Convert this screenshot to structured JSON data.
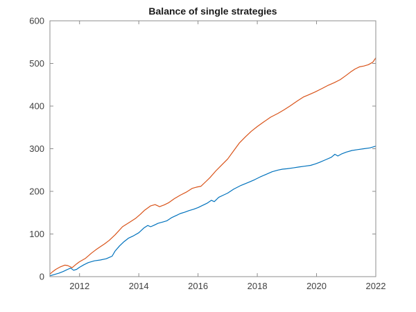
{
  "window": {
    "background": "#ffffff"
  },
  "chart_data": {
    "type": "line",
    "title": "Balance of single strategies",
    "xlabel": "",
    "ylabel": "",
    "xlim": [
      2011,
      2022
    ],
    "ylim": [
      0,
      600
    ],
    "x_ticks": [
      2012,
      2014,
      2016,
      2018,
      2020,
      2022
    ],
    "y_ticks": [
      0,
      100,
      200,
      300,
      400,
      500,
      600
    ],
    "grid": false,
    "legend": "none",
    "box": true,
    "tick_direction": "in",
    "axis_color": "#8c8c8c",
    "tick_label_color": "#404040",
    "title_color": "#1a1a1a",
    "series": [
      {
        "name": "strategy-1-balance",
        "color": "#0072BD",
        "points": [
          [
            2011.0,
            2
          ],
          [
            2011.15,
            5
          ],
          [
            2011.3,
            8
          ],
          [
            2011.45,
            12
          ],
          [
            2011.6,
            17
          ],
          [
            2011.7,
            20
          ],
          [
            2011.8,
            15
          ],
          [
            2011.9,
            17
          ],
          [
            2012.0,
            22
          ],
          [
            2012.15,
            28
          ],
          [
            2012.3,
            33
          ],
          [
            2012.5,
            37
          ],
          [
            2012.7,
            39
          ],
          [
            2012.9,
            42
          ],
          [
            2013.0,
            45
          ],
          [
            2013.1,
            48
          ],
          [
            2013.2,
            60
          ],
          [
            2013.35,
            72
          ],
          [
            2013.5,
            82
          ],
          [
            2013.65,
            90
          ],
          [
            2013.8,
            95
          ],
          [
            2014.0,
            103
          ],
          [
            2014.17,
            114
          ],
          [
            2014.3,
            120
          ],
          [
            2014.4,
            117
          ],
          [
            2014.5,
            120
          ],
          [
            2014.65,
            125
          ],
          [
            2014.8,
            128
          ],
          [
            2014.95,
            131
          ],
          [
            2015.1,
            138
          ],
          [
            2015.25,
            143
          ],
          [
            2015.4,
            148
          ],
          [
            2015.55,
            151
          ],
          [
            2015.7,
            155
          ],
          [
            2015.85,
            158
          ],
          [
            2016.0,
            162
          ],
          [
            2016.15,
            167
          ],
          [
            2016.3,
            172
          ],
          [
            2016.45,
            179
          ],
          [
            2016.55,
            176
          ],
          [
            2016.7,
            186
          ],
          [
            2016.85,
            191
          ],
          [
            2017.0,
            196
          ],
          [
            2017.2,
            205
          ],
          [
            2017.45,
            214
          ],
          [
            2017.7,
            221
          ],
          [
            2017.9,
            227
          ],
          [
            2018.1,
            234
          ],
          [
            2018.3,
            240
          ],
          [
            2018.5,
            246
          ],
          [
            2018.7,
            250
          ],
          [
            2018.85,
            252
          ],
          [
            2019.0,
            253
          ],
          [
            2019.2,
            255
          ],
          [
            2019.4,
            257
          ],
          [
            2019.6,
            259
          ],
          [
            2019.8,
            261
          ],
          [
            2019.95,
            264
          ],
          [
            2020.1,
            268
          ],
          [
            2020.3,
            274
          ],
          [
            2020.5,
            280
          ],
          [
            2020.62,
            287
          ],
          [
            2020.72,
            283
          ],
          [
            2020.85,
            288
          ],
          [
            2021.0,
            292
          ],
          [
            2021.2,
            296
          ],
          [
            2021.4,
            298
          ],
          [
            2021.6,
            300
          ],
          [
            2021.8,
            302
          ],
          [
            2022.0,
            306
          ]
        ]
      },
      {
        "name": "strategy-2-balance",
        "color": "#D95319",
        "points": [
          [
            2011.0,
            6
          ],
          [
            2011.1,
            12
          ],
          [
            2011.2,
            17
          ],
          [
            2011.35,
            23
          ],
          [
            2011.5,
            27
          ],
          [
            2011.6,
            26
          ],
          [
            2011.75,
            21
          ],
          [
            2011.9,
            30
          ],
          [
            2012.0,
            35
          ],
          [
            2012.2,
            43
          ],
          [
            2012.4,
            55
          ],
          [
            2012.55,
            63
          ],
          [
            2012.7,
            70
          ],
          [
            2012.85,
            77
          ],
          [
            2013.0,
            85
          ],
          [
            2013.2,
            98
          ],
          [
            2013.45,
            117
          ],
          [
            2013.7,
            128
          ],
          [
            2013.9,
            137
          ],
          [
            2014.05,
            146
          ],
          [
            2014.2,
            156
          ],
          [
            2014.4,
            166
          ],
          [
            2014.55,
            169
          ],
          [
            2014.7,
            164
          ],
          [
            2014.85,
            168
          ],
          [
            2015.0,
            173
          ],
          [
            2015.2,
            183
          ],
          [
            2015.4,
            191
          ],
          [
            2015.6,
            198
          ],
          [
            2015.8,
            207
          ],
          [
            2015.95,
            210
          ],
          [
            2016.1,
            212
          ],
          [
            2016.25,
            222
          ],
          [
            2016.4,
            232
          ],
          [
            2016.6,
            248
          ],
          [
            2016.8,
            262
          ],
          [
            2017.0,
            276
          ],
          [
            2017.2,
            295
          ],
          [
            2017.4,
            314
          ],
          [
            2017.6,
            328
          ],
          [
            2017.8,
            341
          ],
          [
            2018.0,
            352
          ],
          [
            2018.2,
            362
          ],
          [
            2018.45,
            374
          ],
          [
            2018.7,
            383
          ],
          [
            2018.9,
            391
          ],
          [
            2019.1,
            400
          ],
          [
            2019.35,
            412
          ],
          [
            2019.55,
            421
          ],
          [
            2019.75,
            427
          ],
          [
            2019.95,
            433
          ],
          [
            2020.15,
            440
          ],
          [
            2020.4,
            449
          ],
          [
            2020.6,
            455
          ],
          [
            2020.8,
            462
          ],
          [
            2021.0,
            472
          ],
          [
            2021.15,
            480
          ],
          [
            2021.3,
            487
          ],
          [
            2021.45,
            492
          ],
          [
            2021.6,
            494
          ],
          [
            2021.75,
            497
          ],
          [
            2021.9,
            503
          ],
          [
            2022.0,
            513
          ]
        ]
      }
    ]
  }
}
